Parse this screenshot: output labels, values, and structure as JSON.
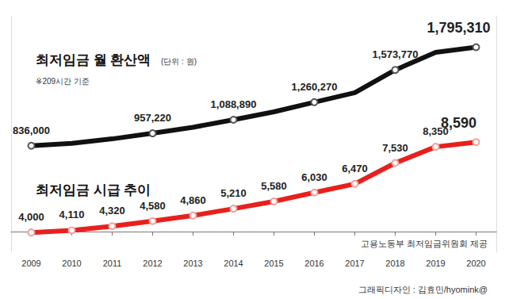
{
  "chart_data": {
    "type": "line",
    "categories": [
      "2009",
      "2010",
      "2011",
      "2012",
      "2013",
      "2014",
      "2015",
      "2016",
      "2017",
      "2018",
      "2019",
      "2020"
    ],
    "series": [
      {
        "name": "최저임금 월 환산액",
        "axis": "y2",
        "color": "#111111",
        "marker": "circle",
        "values": [
          836000,
          858990,
          902880,
          957220,
          1015740,
          1088890,
          1166220,
          1260270,
          1352230,
          1573770,
          1745150,
          1795310
        ],
        "value_labels": [
          "836,000",
          null,
          null,
          "957,220",
          null,
          "1,088,890",
          null,
          "1,260,270",
          null,
          "1,573,770",
          null,
          "1,795,310"
        ]
      },
      {
        "name": "최저임금 시급 추이",
        "color": "#e8201c",
        "marker": "circle",
        "values": [
          4000,
          4110,
          4320,
          4580,
          4860,
          5210,
          5580,
          6030,
          6470,
          7530,
          8350,
          8590
        ],
        "value_labels": [
          "4,000",
          "4,110",
          "4,320",
          "4,580",
          "4,860",
          "5,210",
          "5,580",
          "6,030",
          "6,470",
          "7,530",
          "8,350",
          "8,590"
        ]
      }
    ],
    "ylim": [
      3000,
      15000
    ],
    "y2lim": [
      -200000,
      2100000
    ],
    "data_labels": true,
    "tick_labels": "x",
    "grid": false,
    "annotations": {
      "unit": "(단위 : 원)",
      "note": "※209시간 기준",
      "source": "고용노동부 최저임금위원회 제공",
      "credit": "그래픽디자인 : 김효민/hyomink@"
    }
  }
}
